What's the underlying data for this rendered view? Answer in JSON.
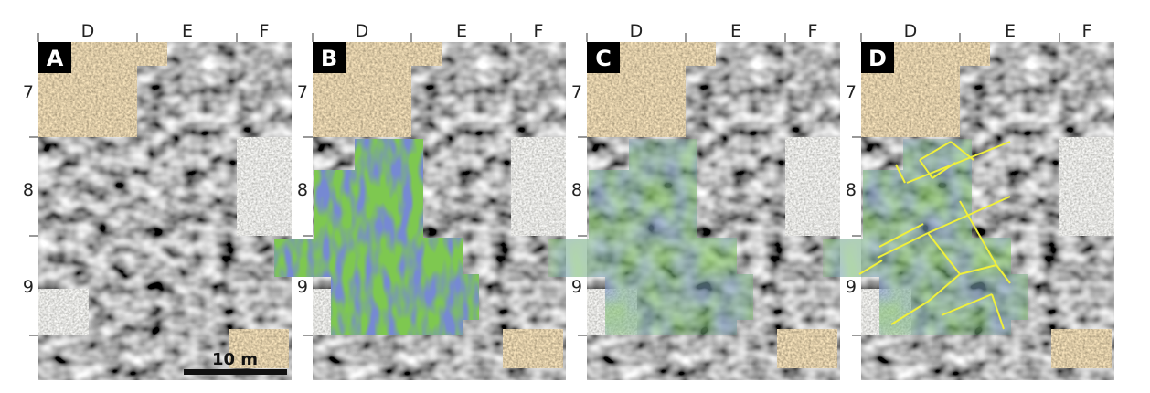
{
  "figure": {
    "panels": [
      {
        "label": "A",
        "overlay": "none"
      },
      {
        "label": "B",
        "overlay": "classified-blue-green"
      },
      {
        "label": "C",
        "overlay": "transparent-blue-green"
      },
      {
        "label": "D",
        "overlay": "transparent-blue-green-with-yellow-wall-lines"
      }
    ],
    "columns": [
      "D",
      "E",
      "F"
    ],
    "rows": [
      "7",
      "8",
      "9"
    ],
    "scale_bar": "10 m",
    "colors": {
      "blue": "#2b3fa8",
      "green": "#7ec850",
      "lines": "#f0f03a",
      "photo_brown": "#9a8058",
      "photo_gray": "#b8b8b4"
    }
  }
}
